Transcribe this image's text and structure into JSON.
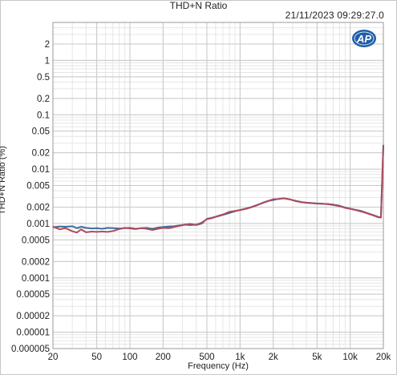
{
  "window": {
    "title": "THD+N Ratio",
    "timestamp": "21/11/2023 09:29:27.0",
    "logo_text": "AP"
  },
  "chart_data": {
    "type": "line",
    "title": "THD+N Ratio",
    "xlabel": "Frequency (Hz)",
    "ylabel": "THD+N Ratio (%)",
    "x_scale": "log",
    "y_scale": "log",
    "xlim": [
      20,
      20000
    ],
    "ylim": [
      5e-06,
      5
    ],
    "grid": true,
    "x_ticks": [
      {
        "v": 20,
        "label": "20"
      },
      {
        "v": 50,
        "label": "50"
      },
      {
        "v": 100,
        "label": "100"
      },
      {
        "v": 200,
        "label": "200"
      },
      {
        "v": 500,
        "label": "500"
      },
      {
        "v": 1000,
        "label": "1k"
      },
      {
        "v": 2000,
        "label": "2k"
      },
      {
        "v": 5000,
        "label": "5k"
      },
      {
        "v": 10000,
        "label": "10k"
      },
      {
        "v": 20000,
        "label": "20k"
      }
    ],
    "y_ticks": [
      {
        "v": 2,
        "label": "2"
      },
      {
        "v": 1,
        "label": "1"
      },
      {
        "v": 0.5,
        "label": "0.5"
      },
      {
        "v": 0.2,
        "label": "0.2"
      },
      {
        "v": 0.1,
        "label": "0.1"
      },
      {
        "v": 0.05,
        "label": "0.05"
      },
      {
        "v": 0.02,
        "label": "0.02"
      },
      {
        "v": 0.01,
        "label": "0.01"
      },
      {
        "v": 0.005,
        "label": "0.005"
      },
      {
        "v": 0.002,
        "label": "0.002"
      },
      {
        "v": 0.001,
        "label": "0.001"
      },
      {
        "v": 0.0005,
        "label": "0.0005"
      },
      {
        "v": 0.0002,
        "label": "0.0002"
      },
      {
        "v": 0.0001,
        "label": "0.0001"
      },
      {
        "v": 5e-05,
        "label": "0.00005"
      },
      {
        "v": 2e-05,
        "label": "0.00002"
      },
      {
        "v": 1e-05,
        "label": "0.00001"
      },
      {
        "v": 5e-06,
        "label": "0.000005"
      }
    ],
    "series": [
      {
        "color": "#3a6e9e",
        "points": [
          [
            20,
            0.00085
          ],
          [
            23,
            0.00088
          ],
          [
            26,
            0.00087
          ],
          [
            30,
            0.00089
          ],
          [
            33,
            0.00082
          ],
          [
            36,
            0.00087
          ],
          [
            40,
            0.00083
          ],
          [
            45,
            0.00081
          ],
          [
            50,
            0.00082
          ],
          [
            56,
            0.0008
          ],
          [
            63,
            0.00083
          ],
          [
            71,
            0.00082
          ],
          [
            80,
            0.00081
          ],
          [
            90,
            0.00082
          ],
          [
            100,
            0.00083
          ],
          [
            113,
            0.0008
          ],
          [
            126,
            0.00082
          ],
          [
            142,
            0.00083
          ],
          [
            160,
            0.0008
          ],
          [
            180,
            0.00084
          ],
          [
            200,
            0.00086
          ],
          [
            225,
            0.00088
          ],
          [
            250,
            0.00089
          ],
          [
            280,
            0.00092
          ],
          [
            320,
            0.00095
          ],
          [
            350,
            0.00098
          ],
          [
            400,
            0.00094
          ],
          [
            450,
            0.001
          ],
          [
            500,
            0.00122
          ],
          [
            560,
            0.00128
          ],
          [
            630,
            0.00136
          ],
          [
            710,
            0.00145
          ],
          [
            800,
            0.00156
          ],
          [
            900,
            0.00168
          ],
          [
            1000,
            0.00178
          ],
          [
            1130,
            0.00188
          ],
          [
            1260,
            0.002
          ],
          [
            1420,
            0.00218
          ],
          [
            1600,
            0.0024
          ],
          [
            1800,
            0.0026
          ],
          [
            2000,
            0.0027
          ],
          [
            2250,
            0.00285
          ],
          [
            2500,
            0.0029
          ],
          [
            2800,
            0.00278
          ],
          [
            3200,
            0.00262
          ],
          [
            3600,
            0.00248
          ],
          [
            4000,
            0.00242
          ],
          [
            4500,
            0.00238
          ],
          [
            5000,
            0.00234
          ],
          [
            5600,
            0.0023
          ],
          [
            6300,
            0.00228
          ],
          [
            7100,
            0.00222
          ],
          [
            8000,
            0.00212
          ],
          [
            9000,
            0.00196
          ],
          [
            10000,
            0.00188
          ],
          [
            11300,
            0.00178
          ],
          [
            12600,
            0.0017
          ],
          [
            14200,
            0.00156
          ],
          [
            16000,
            0.00144
          ],
          [
            18000,
            0.00132
          ],
          [
            19000,
            0.0013
          ],
          [
            20000,
            0.028
          ]
        ]
      },
      {
        "color": "#b04a5a",
        "points": [
          [
            20,
            0.00088
          ],
          [
            23,
            0.00078
          ],
          [
            26,
            0.00082
          ],
          [
            30,
            0.00072
          ],
          [
            33,
            0.00068
          ],
          [
            36,
            0.00078
          ],
          [
            40,
            0.00069
          ],
          [
            45,
            0.00071
          ],
          [
            50,
            0.0007
          ],
          [
            56,
            0.00071
          ],
          [
            63,
            0.0007
          ],
          [
            71,
            0.00073
          ],
          [
            80,
            0.00079
          ],
          [
            90,
            0.00083
          ],
          [
            100,
            0.00081
          ],
          [
            113,
            0.00079
          ],
          [
            126,
            0.00082
          ],
          [
            142,
            0.0008
          ],
          [
            160,
            0.00076
          ],
          [
            180,
            0.0008
          ],
          [
            200,
            0.00083
          ],
          [
            225,
            0.00082
          ],
          [
            250,
            0.00086
          ],
          [
            280,
            0.0009
          ],
          [
            320,
            0.00096
          ],
          [
            350,
            0.00093
          ],
          [
            400,
            0.00095
          ],
          [
            450,
            0.00104
          ],
          [
            500,
            0.0012
          ],
          [
            560,
            0.00126
          ],
          [
            630,
            0.00138
          ],
          [
            710,
            0.00148
          ],
          [
            800,
            0.00164
          ],
          [
            900,
            0.0017
          ],
          [
            1000,
            0.00176
          ],
          [
            1130,
            0.00186
          ],
          [
            1260,
            0.00198
          ],
          [
            1420,
            0.00215
          ],
          [
            1600,
            0.00238
          ],
          [
            1800,
            0.00258
          ],
          [
            2000,
            0.0028
          ],
          [
            2250,
            0.00282
          ],
          [
            2500,
            0.00292
          ],
          [
            2800,
            0.0028
          ],
          [
            3200,
            0.00258
          ],
          [
            3600,
            0.00246
          ],
          [
            4000,
            0.0024
          ],
          [
            4500,
            0.00236
          ],
          [
            5000,
            0.00232
          ],
          [
            5600,
            0.00232
          ],
          [
            6300,
            0.00226
          ],
          [
            7100,
            0.00218
          ],
          [
            8000,
            0.00208
          ],
          [
            9000,
            0.00194
          ],
          [
            10000,
            0.00186
          ],
          [
            11300,
            0.00176
          ],
          [
            12600,
            0.00166
          ],
          [
            14200,
            0.00154
          ],
          [
            16000,
            0.00142
          ],
          [
            18000,
            0.0013
          ],
          [
            19000,
            0.00128
          ],
          [
            20000,
            0.026
          ]
        ]
      }
    ]
  }
}
